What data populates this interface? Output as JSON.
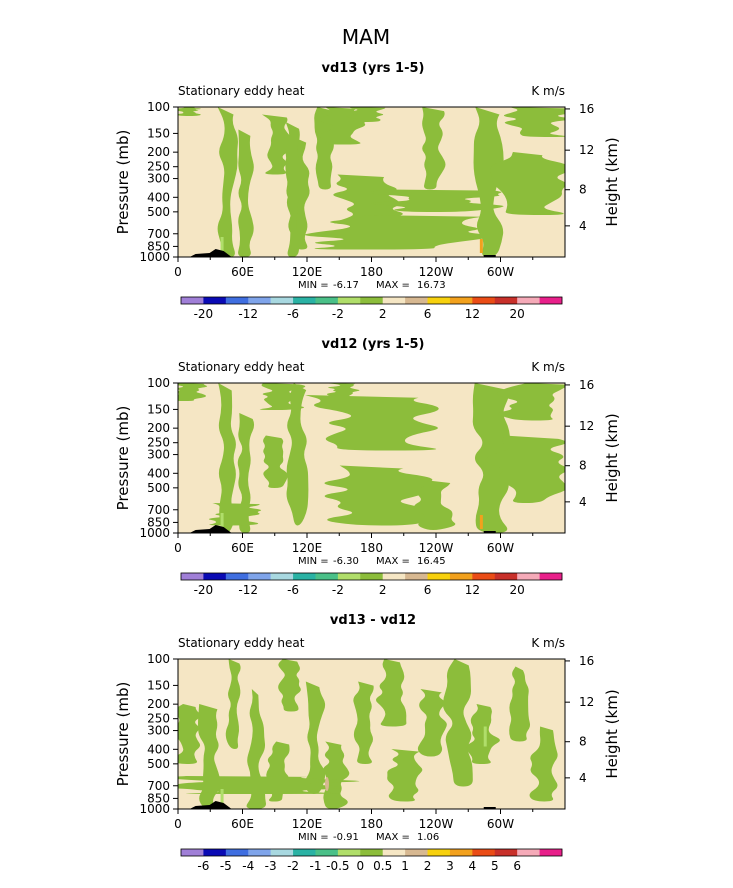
{
  "figure_title": "MAM",
  "colors": {
    "background_fill": "#f5e6c4",
    "main_anomaly_fill": "#8cbd3b",
    "minor_fill_green": "#b0de6a",
    "minor_fill_tan": "#d7b891",
    "minor_fill_orange": "#f2a11d",
    "topography": "#000000"
  },
  "chart_data": [
    {
      "type": "heatmap",
      "title": "vd13 (yrs 1-5)",
      "left_label": "Stationary eddy heat",
      "right_label": "K m/s",
      "ylabel_left": "Pressure (mb)",
      "ylabel_right": "Height (km)",
      "pressure_ticks": [
        "100",
        "150",
        "200",
        "250",
        "300",
        "400",
        "500",
        "700",
        "850",
        "1000"
      ],
      "height_ticks": [
        "16",
        "12",
        "8",
        "4"
      ],
      "lon_ticks": [
        "0",
        "60E",
        "120E",
        "180",
        "120W",
        "60W"
      ],
      "stats": {
        "min_label": "MIN =",
        "min": "-6.17",
        "max_label": "MAX =",
        "max": "16.73"
      },
      "colorbar_labels": [
        "-20",
        "-12",
        "-6",
        "-2",
        "2",
        "6",
        "12",
        "20"
      ],
      "colorbar_colors": [
        "#a07fd7",
        "#0a0ab4",
        "#3f6ee0",
        "#7fa4ea",
        "#a8d8e0",
        "#2ab2a4",
        "#4ac088",
        "#b0de6a",
        "#8cbd3b",
        "#f5e6c4",
        "#d7b891",
        "#f7d10e",
        "#f2a11d",
        "#ea4c16",
        "#c8302a",
        "#f5aab8",
        "#e8208a"
      ]
    },
    {
      "type": "heatmap",
      "title": "vd12 (yrs 1-5)",
      "left_label": "Stationary eddy heat",
      "right_label": "K m/s",
      "ylabel_left": "Pressure (mb)",
      "ylabel_right": "Height (km)",
      "pressure_ticks": [
        "100",
        "150",
        "200",
        "250",
        "300",
        "400",
        "500",
        "700",
        "850",
        "1000"
      ],
      "height_ticks": [
        "16",
        "12",
        "8",
        "4"
      ],
      "lon_ticks": [
        "0",
        "60E",
        "120E",
        "180",
        "120W",
        "60W"
      ],
      "stats": {
        "min_label": "MIN =",
        "min": "-6.30",
        "max_label": "MAX =",
        "max": "16.45"
      },
      "colorbar_labels": [
        "-20",
        "-12",
        "-6",
        "-2",
        "2",
        "6",
        "12",
        "20"
      ],
      "colorbar_colors": [
        "#a07fd7",
        "#0a0ab4",
        "#3f6ee0",
        "#7fa4ea",
        "#a8d8e0",
        "#2ab2a4",
        "#4ac088",
        "#b0de6a",
        "#8cbd3b",
        "#f5e6c4",
        "#d7b891",
        "#f7d10e",
        "#f2a11d",
        "#ea4c16",
        "#c8302a",
        "#f5aab8",
        "#e8208a"
      ]
    },
    {
      "type": "heatmap",
      "title": "vd13 - vd12",
      "left_label": "Stationary eddy heat",
      "right_label": "K m/s",
      "ylabel_left": "Pressure (mb)",
      "ylabel_right": "Height (km)",
      "pressure_ticks": [
        "100",
        "150",
        "200",
        "250",
        "300",
        "400",
        "500",
        "700",
        "850",
        "1000"
      ],
      "height_ticks": [
        "16",
        "12",
        "8",
        "4"
      ],
      "lon_ticks": [
        "0",
        "60E",
        "120E",
        "180",
        "120W",
        "60W"
      ],
      "stats": {
        "min_label": "MIN =",
        "min": "-0.91",
        "max_label": "MAX =",
        "max": "1.06"
      },
      "colorbar_labels": [
        "-6",
        "-5",
        "-4",
        "-3",
        "-2",
        "-1",
        "-0.5",
        "0",
        "0.5",
        "1",
        "2",
        "3",
        "4",
        "5",
        "6"
      ],
      "colorbar_colors": [
        "#a07fd7",
        "#0a0ab4",
        "#3f6ee0",
        "#7fa4ea",
        "#a8d8e0",
        "#2ab2a4",
        "#4ac088",
        "#b0de6a",
        "#8cbd3b",
        "#f5e6c4",
        "#d7b891",
        "#f7d10e",
        "#f2a11d",
        "#ea4c16",
        "#c8302a",
        "#f5aab8",
        "#e8208a"
      ]
    }
  ]
}
